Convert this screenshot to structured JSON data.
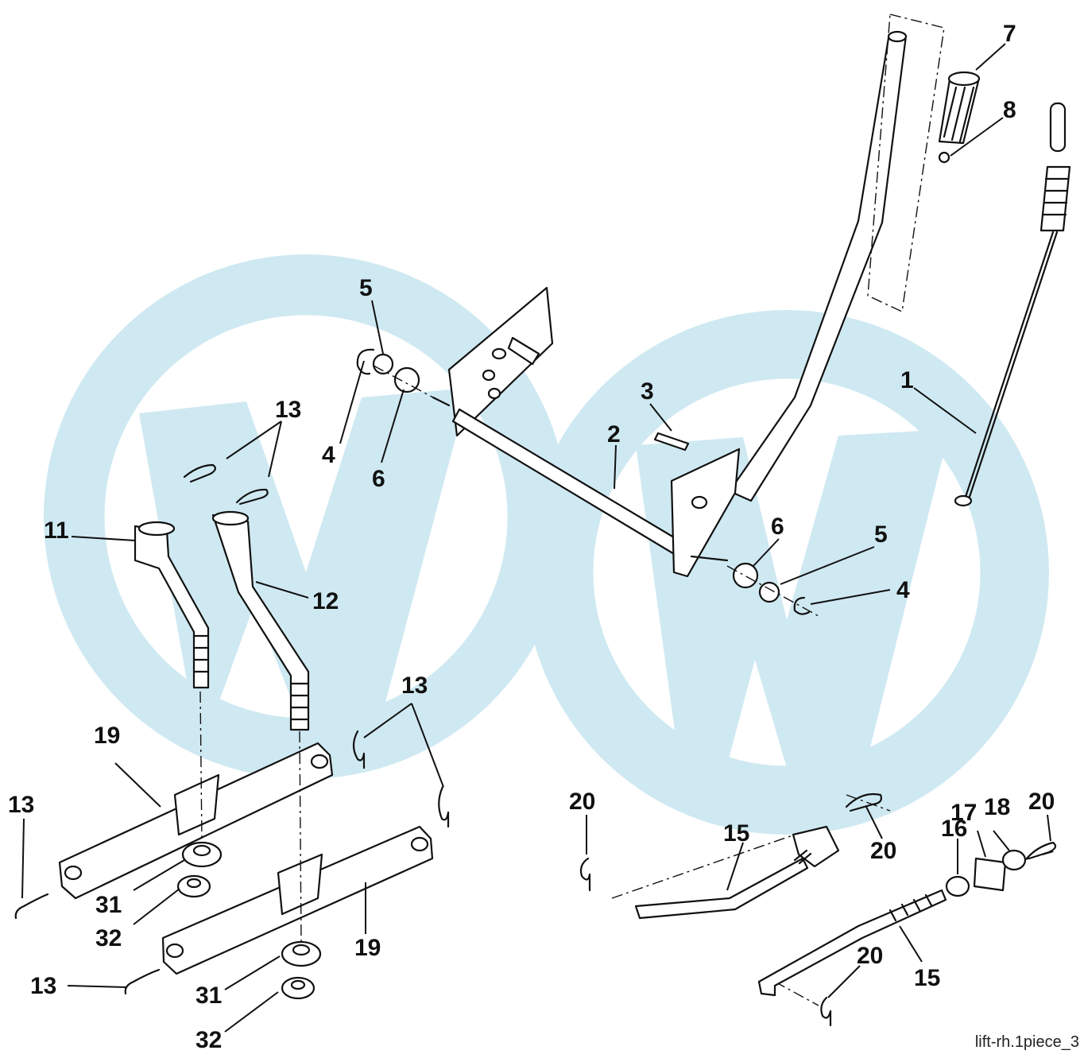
{
  "caption": "lift-rh.1piece_3",
  "callouts": [
    {
      "id": "c7",
      "text": "7"
    },
    {
      "id": "c8",
      "text": "8"
    },
    {
      "id": "c1",
      "text": "1"
    },
    {
      "id": "c5a",
      "text": "5"
    },
    {
      "id": "c4a",
      "text": "4"
    },
    {
      "id": "c6a",
      "text": "6"
    },
    {
      "id": "c3",
      "text": "3"
    },
    {
      "id": "c2",
      "text": "2"
    },
    {
      "id": "c13a",
      "text": "13"
    },
    {
      "id": "c11",
      "text": "11"
    },
    {
      "id": "c12",
      "text": "12"
    },
    {
      "id": "c6b",
      "text": "6"
    },
    {
      "id": "c5b",
      "text": "5"
    },
    {
      "id": "c4b",
      "text": "4"
    },
    {
      "id": "c13b",
      "text": "13"
    },
    {
      "id": "c19a",
      "text": "19"
    },
    {
      "id": "c13c",
      "text": "13"
    },
    {
      "id": "c31a",
      "text": "31"
    },
    {
      "id": "c32a",
      "text": "32"
    },
    {
      "id": "c19b",
      "text": "19"
    },
    {
      "id": "c13d",
      "text": "13"
    },
    {
      "id": "c31b",
      "text": "31"
    },
    {
      "id": "c32b",
      "text": "32"
    },
    {
      "id": "c20a",
      "text": "20"
    },
    {
      "id": "c15a",
      "text": "15"
    },
    {
      "id": "c20b",
      "text": "20"
    },
    {
      "id": "c16",
      "text": "16"
    },
    {
      "id": "c17",
      "text": "17"
    },
    {
      "id": "c18",
      "text": "18"
    },
    {
      "id": "c20c",
      "text": "20"
    },
    {
      "id": "c20d",
      "text": "20"
    },
    {
      "id": "c15b",
      "text": "15"
    }
  ],
  "watermark_color": "#cfe9f2"
}
